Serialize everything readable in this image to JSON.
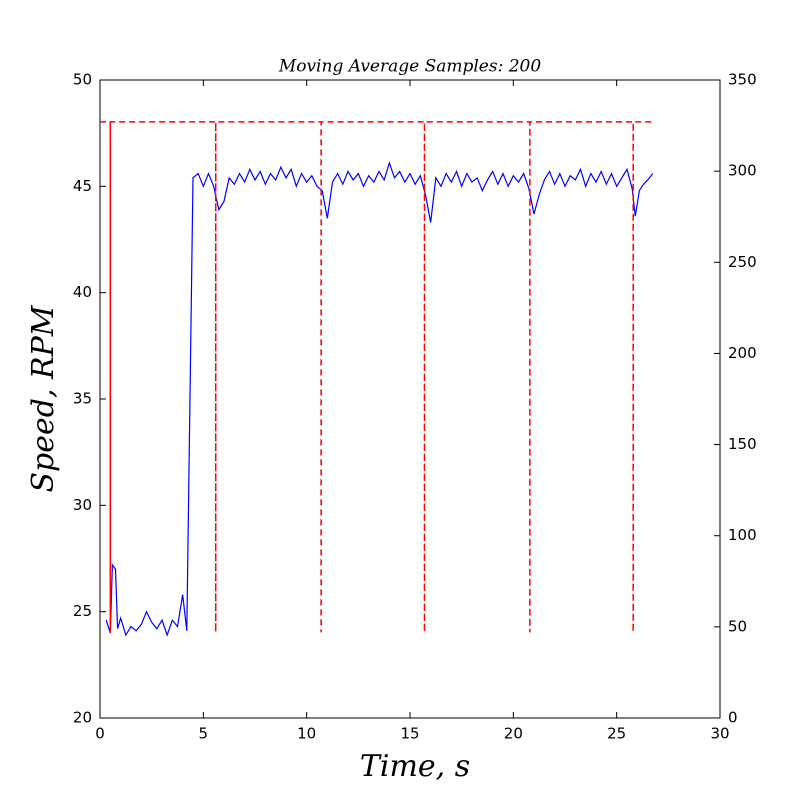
{
  "chart_data": {
    "type": "line",
    "title": "Moving Average Samples: 200",
    "x_label": "Time, s",
    "y_label": "Speed, RPM",
    "xlim": [
      0,
      30
    ],
    "xticks": [
      0,
      5,
      10,
      15,
      20,
      25,
      30
    ],
    "ylim": [
      20,
      50
    ],
    "yticks": [
      20,
      25,
      30,
      35,
      40,
      45,
      50
    ],
    "y2lim": [
      0,
      350
    ],
    "y2ticks": [
      0,
      50,
      100,
      150,
      200,
      250,
      300,
      350
    ],
    "series": [
      {
        "color": "#0000ff",
        "x": [
          0.3,
          0.5,
          0.6,
          0.75,
          0.85,
          1.0,
          1.25,
          1.5,
          1.75,
          2.0,
          2.25,
          2.5,
          2.75,
          3.0,
          3.25,
          3.5,
          3.75,
          4.0,
          4.2,
          4.5,
          4.75,
          5.0,
          5.25,
          5.5,
          5.75,
          6.0,
          6.25,
          6.5,
          6.75,
          7.0,
          7.25,
          7.5,
          7.75,
          8.0,
          8.25,
          8.5,
          8.75,
          9.0,
          9.25,
          9.5,
          9.75,
          10.0,
          10.25,
          10.5,
          10.75,
          11.0,
          11.25,
          11.5,
          11.75,
          12.0,
          12.25,
          12.5,
          12.75,
          13.0,
          13.25,
          13.5,
          13.75,
          14.0,
          14.25,
          14.5,
          14.75,
          15.0,
          15.25,
          15.5,
          15.75,
          16.0,
          16.25,
          16.5,
          16.75,
          17.0,
          17.25,
          17.5,
          17.75,
          18.0,
          18.25,
          18.5,
          18.75,
          19.0,
          19.25,
          19.5,
          19.75,
          20.0,
          20.25,
          20.5,
          20.75,
          21.0,
          21.25,
          21.5,
          21.75,
          22.0,
          22.25,
          22.5,
          22.75,
          23.0,
          23.25,
          23.5,
          23.75,
          24.0,
          24.25,
          24.5,
          24.75,
          25.0,
          25.25,
          25.5,
          25.75,
          25.9,
          26.1,
          26.3,
          26.5,
          26.75
        ],
        "values": [
          24.6,
          24.0,
          27.2,
          27.0,
          24.2,
          24.7,
          23.9,
          24.3,
          24.1,
          24.4,
          25.0,
          24.5,
          24.2,
          24.6,
          23.9,
          24.6,
          24.3,
          25.8,
          24.1,
          45.4,
          45.6,
          45.0,
          45.6,
          45.0,
          43.9,
          44.3,
          45.4,
          45.1,
          45.6,
          45.2,
          45.8,
          45.3,
          45.7,
          45.1,
          45.6,
          45.3,
          45.9,
          45.4,
          45.8,
          45.0,
          45.6,
          45.2,
          45.5,
          45.0,
          44.8,
          43.5,
          45.2,
          45.6,
          45.1,
          45.7,
          45.3,
          45.6,
          45.0,
          45.5,
          45.2,
          45.7,
          45.3,
          46.1,
          45.4,
          45.7,
          45.2,
          45.6,
          45.1,
          45.5,
          44.6,
          43.3,
          45.4,
          45.0,
          45.6,
          45.2,
          45.7,
          45.0,
          45.6,
          45.2,
          45.4,
          44.8,
          45.3,
          45.7,
          45.1,
          45.6,
          45.0,
          45.5,
          45.2,
          45.6,
          44.9,
          43.7,
          44.6,
          45.3,
          45.7,
          45.1,
          45.6,
          45.0,
          45.5,
          45.3,
          45.8,
          45.0,
          45.6,
          45.2,
          45.7,
          45.1,
          45.6,
          45.0,
          45.4,
          45.8,
          44.9,
          43.6,
          44.8,
          45.1,
          45.3,
          45.6
        ]
      },
      {
        "color": "#ff0000",
        "axis": "y2",
        "dashed": true,
        "x": [
          0,
          0.5,
          0.5,
          0.5,
          5.6,
          5.6,
          5.6,
          10.7,
          10.7,
          10.7,
          15.7,
          15.7,
          15.7,
          20.8,
          20.8,
          20.8,
          25.8,
          25.8,
          25.8,
          26.8
        ],
        "values": [
          327,
          327,
          47,
          327,
          327,
          47,
          327,
          327,
          47,
          327,
          327,
          47,
          327,
          327,
          47,
          327,
          327,
          47,
          327,
          327
        ]
      }
    ]
  }
}
